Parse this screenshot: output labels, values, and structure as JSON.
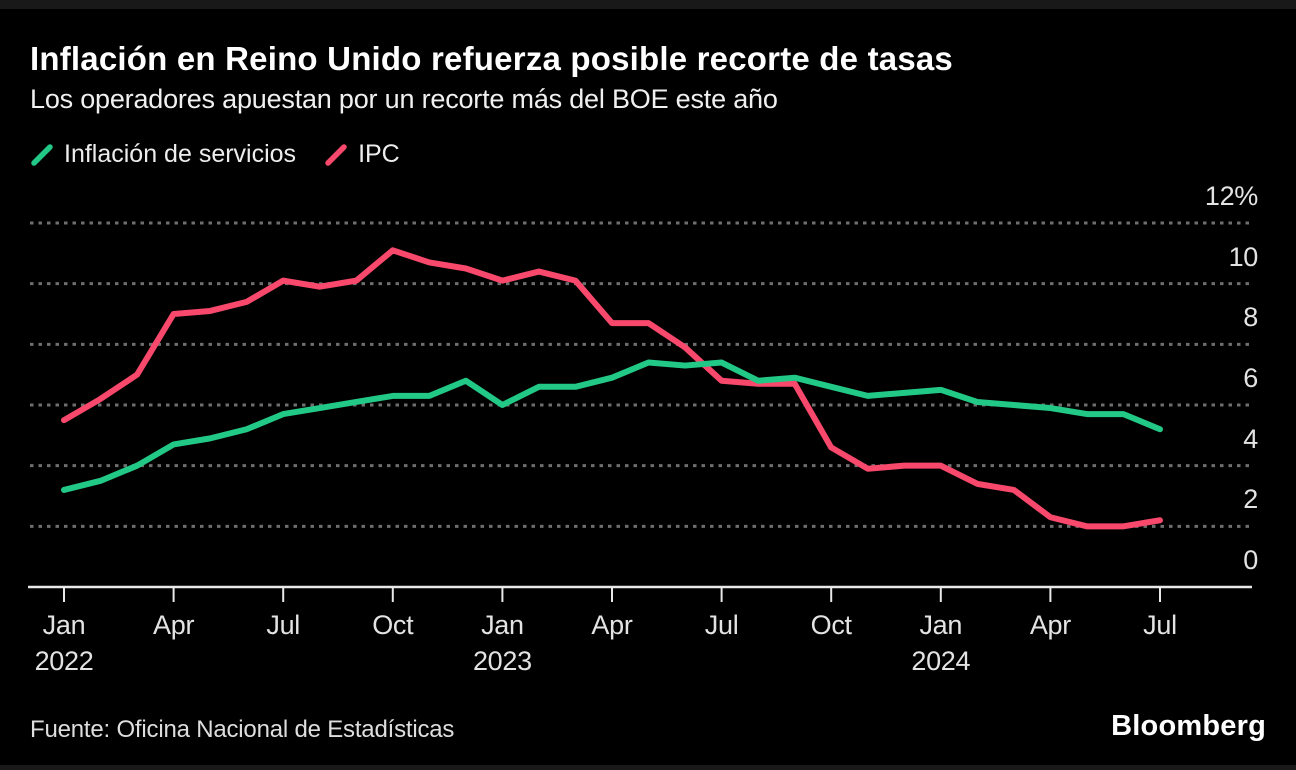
{
  "header": {
    "title": "Inflación en Reino Unido refuerza posible recorte de tasas",
    "subtitle": "Los operadores apuestan por un recorte más del BOE este año"
  },
  "legend": {
    "items": [
      {
        "label": "Inflación de servicios",
        "color": "#22C886"
      },
      {
        "label": "IPC",
        "color": "#F8486B"
      }
    ]
  },
  "footer": {
    "source": "Fuente: Oficina Nacional de Estadísticas",
    "logo": "Bloomberg"
  },
  "colors": {
    "background": "#000000",
    "grid": "#6E6E6E",
    "axis": "#E8E8E8",
    "text_primary": "#FFFFFF",
    "text_secondary": "#E3E3E3"
  },
  "chart_data": {
    "type": "line",
    "title": "Inflación en Reino Unido refuerza posible recorte de tasas",
    "subtitle": "Los operadores apuestan por un recorte más del BOE este año",
    "xlabel": "",
    "ylabel": "%",
    "ylim": [
      0,
      12
    ],
    "grid": "horizontal-dashed",
    "legend_position": "top-left",
    "x_unit": "month",
    "categories": [
      "Jan 2022",
      "Feb 2022",
      "Mar 2022",
      "Apr 2022",
      "May 2022",
      "Jun 2022",
      "Jul 2022",
      "Aug 2022",
      "Sep 2022",
      "Oct 2022",
      "Nov 2022",
      "Dec 2022",
      "Jan 2023",
      "Feb 2023",
      "Mar 2023",
      "Apr 2023",
      "May 2023",
      "Jun 2023",
      "Jul 2023",
      "Aug 2023",
      "Sep 2023",
      "Oct 2023",
      "Nov 2023",
      "Dec 2023",
      "Jan 2024",
      "Feb 2024",
      "Mar 2024",
      "Apr 2024",
      "May 2024",
      "Jun 2024",
      "Jul 2024"
    ],
    "series": [
      {
        "name": "Inflación de servicios",
        "color": "#22C886",
        "values": [
          3.2,
          3.5,
          4.0,
          4.7,
          4.9,
          5.2,
          5.7,
          5.9,
          6.1,
          6.3,
          6.3,
          6.8,
          6.0,
          6.6,
          6.6,
          6.9,
          7.4,
          7.3,
          7.4,
          6.8,
          6.9,
          6.6,
          6.3,
          6.4,
          6.5,
          6.1,
          6.0,
          5.9,
          5.7,
          5.7,
          5.2
        ]
      },
      {
        "name": "IPC",
        "color": "#F8486B",
        "values": [
          5.5,
          6.2,
          7.0,
          9.0,
          9.1,
          9.4,
          10.1,
          9.9,
          10.1,
          11.1,
          10.7,
          10.5,
          10.1,
          10.4,
          10.1,
          8.7,
          8.7,
          7.9,
          6.8,
          6.7,
          6.7,
          4.6,
          3.9,
          4.0,
          4.0,
          3.4,
          3.2,
          2.3,
          2.0,
          2.0,
          2.2
        ]
      }
    ],
    "y_ticks": [
      {
        "label": "12%",
        "value": 12
      },
      {
        "label": "10",
        "value": 10
      },
      {
        "label": "8",
        "value": 8
      },
      {
        "label": "6",
        "value": 6
      },
      {
        "label": "4",
        "value": 4
      },
      {
        "label": "2",
        "value": 2
      },
      {
        "label": "0",
        "value": 0
      }
    ],
    "x_ticks": [
      {
        "label": "Jan",
        "year": "2022",
        "month_index": 0
      },
      {
        "label": "Apr",
        "month_index": 3
      },
      {
        "label": "Jul",
        "month_index": 6
      },
      {
        "label": "Oct",
        "month_index": 9
      },
      {
        "label": "Jan",
        "year": "2023",
        "month_index": 12
      },
      {
        "label": "Apr",
        "month_index": 15
      },
      {
        "label": "Jul",
        "month_index": 18
      },
      {
        "label": "Oct",
        "month_index": 21
      },
      {
        "label": "Jan",
        "year": "2024",
        "month_index": 24
      },
      {
        "label": "Apr",
        "month_index": 27
      },
      {
        "label": "Jul",
        "month_index": 30
      }
    ]
  }
}
